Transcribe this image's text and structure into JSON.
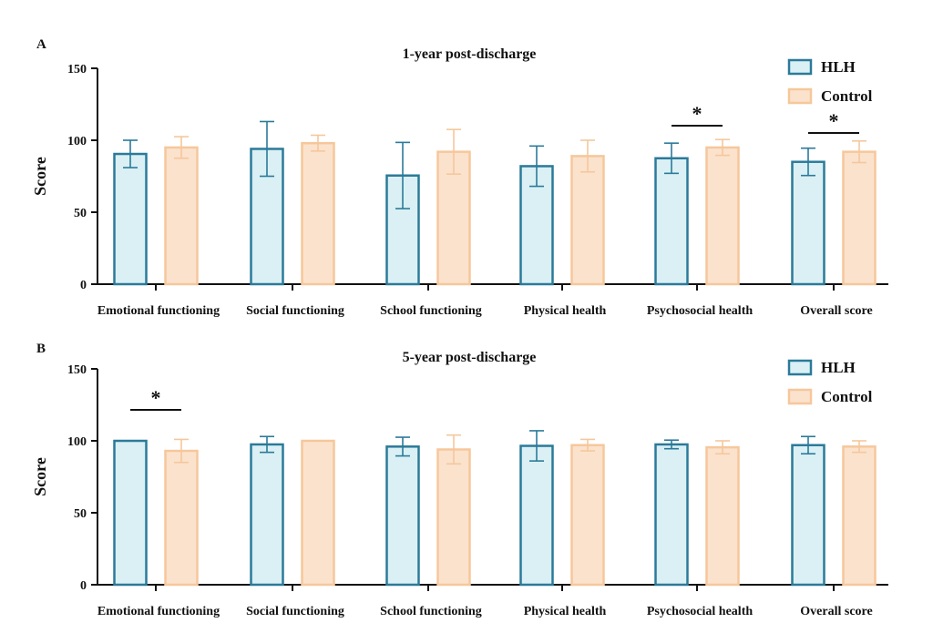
{
  "colors": {
    "hlh_fill": "#daf0f4",
    "hlh_stroke": "#2b7a99",
    "control_fill": "#fbe2cd",
    "control_stroke": "#f6c79b",
    "axis": "#111111"
  },
  "chart_data": [
    {
      "type": "bar",
      "panel_label": "A",
      "title": "1-year post-discharge",
      "xlabel": "",
      "ylabel": "Score",
      "ylim": [
        0,
        150
      ],
      "yticks": [
        "0",
        "50",
        "100",
        "150"
      ],
      "categories": [
        "Emotional functioning",
        "Social functioning",
        "School functioning",
        "Physical health",
        "Psychosocial health",
        "Overall score"
      ],
      "legend_position": "top-right",
      "series": [
        {
          "name": "HLH",
          "values": [
            90.5,
            94,
            75.5,
            82,
            87.5,
            85
          ],
          "error": [
            9.5,
            19,
            23,
            14,
            10.5,
            9.5
          ]
        },
        {
          "name": "Control",
          "values": [
            95,
            98,
            92,
            89,
            95,
            92
          ],
          "error": [
            7.5,
            5.5,
            15.5,
            11,
            5.5,
            7.5
          ]
        }
      ],
      "significance": [
        {
          "category_index": 4,
          "label": "*"
        },
        {
          "category_index": 5,
          "label": "*"
        }
      ]
    },
    {
      "type": "bar",
      "panel_label": "B",
      "title": "5-year post-discharge",
      "xlabel": "",
      "ylabel": "Score",
      "ylim": [
        0,
        150
      ],
      "yticks": [
        "0",
        "50",
        "100",
        "150"
      ],
      "categories": [
        "Emotional functioning",
        "Social functioning",
        "School functioning",
        "Physical health",
        "Psychosocial health",
        "Overall score"
      ],
      "legend_position": "top-right",
      "series": [
        {
          "name": "HLH",
          "values": [
            100,
            97.5,
            96,
            96.5,
            97.5,
            97
          ],
          "error": [
            0,
            5.5,
            6.5,
            10.5,
            3,
            6
          ]
        },
        {
          "name": "Control",
          "values": [
            93,
            100,
            94,
            97,
            95.5,
            96
          ],
          "error": [
            8,
            0,
            10,
            4,
            4.5,
            4
          ]
        }
      ],
      "significance": [
        {
          "category_index": 0,
          "label": "*"
        }
      ]
    }
  ]
}
